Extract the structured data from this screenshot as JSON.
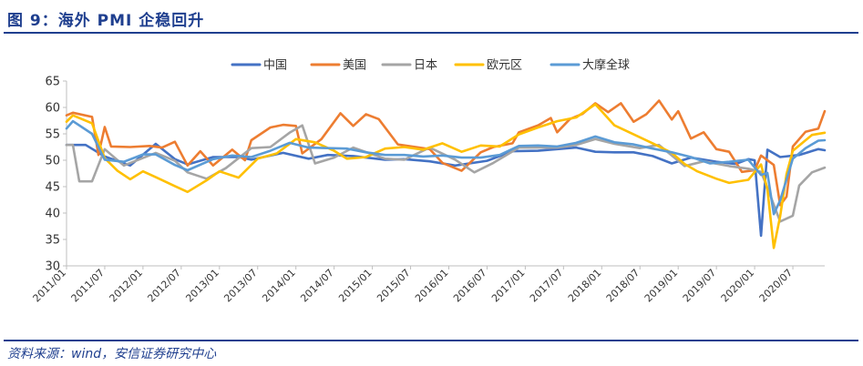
{
  "figure": {
    "title": "图 9：海外 PMI 企稳回升",
    "source": "资料来源：wind，安信证券研究中心"
  },
  "chart_data": {
    "type": "line",
    "title": "",
    "xlabel": "",
    "ylabel": "",
    "ylim": [
      30,
      65
    ],
    "yticks": [
      30,
      35,
      40,
      45,
      50,
      55,
      60,
      65
    ],
    "xticks": [
      "2011/01",
      "2011/07",
      "2012/01",
      "2012/07",
      "2013/01",
      "2013/07",
      "2014/01",
      "2014/07",
      "2015/01",
      "2015/07",
      "2016/01",
      "2016/07",
      "2017/01",
      "2017/07",
      "2018/01",
      "2018/07",
      "2019/01",
      "2019/07",
      "2020/01",
      "2020/07"
    ],
    "legend_position": "top-center",
    "grid": false,
    "x_start": "2011/01",
    "x_end": "2020/12",
    "series": [
      {
        "name": "中国",
        "color": "#4472c4",
        "points": [
          [
            "2011/01",
            52.9
          ],
          [
            "2011/04",
            52.9
          ],
          [
            "2011/07",
            50.7
          ],
          [
            "2011/11",
            49.0
          ],
          [
            "2012/03",
            53.1
          ],
          [
            "2012/06",
            50.2
          ],
          [
            "2012/08",
            49.2
          ],
          [
            "2012/12",
            50.6
          ],
          [
            "2013/04",
            50.6
          ],
          [
            "2013/06",
            50.1
          ],
          [
            "2013/11",
            51.4
          ],
          [
            "2014/03",
            50.3
          ],
          [
            "2014/06",
            51.0
          ],
          [
            "2014/10",
            50.8
          ],
          [
            "2015/03",
            50.1
          ],
          [
            "2015/06",
            50.2
          ],
          [
            "2015/10",
            49.8
          ],
          [
            "2016/02",
            49.0
          ],
          [
            "2016/07",
            49.9
          ],
          [
            "2016/11",
            51.7
          ],
          [
            "2017/03",
            51.8
          ],
          [
            "2017/09",
            52.4
          ],
          [
            "2017/12",
            51.6
          ],
          [
            "2018/03",
            51.5
          ],
          [
            "2018/06",
            51.5
          ],
          [
            "2018/09",
            50.8
          ],
          [
            "2018/12",
            49.4
          ],
          [
            "2019/03",
            50.5
          ],
          [
            "2019/07",
            49.7
          ],
          [
            "2019/10",
            49.3
          ],
          [
            "2019/12",
            50.2
          ],
          [
            "2020/01",
            50.0
          ],
          [
            "2020/02",
            35.7
          ],
          [
            "2020/03",
            52.0
          ],
          [
            "2020/05",
            50.6
          ],
          [
            "2020/08",
            51.0
          ],
          [
            "2020/11",
            52.1
          ],
          [
            "2020/12",
            51.9
          ]
        ]
      },
      {
        "name": "美国",
        "color": "#ed7d31",
        "points": [
          [
            "2011/01",
            58.5
          ],
          [
            "2011/02",
            59.0
          ],
          [
            "2011/05",
            58.2
          ],
          [
            "2011/06",
            51.0
          ],
          [
            "2011/07",
            56.3
          ],
          [
            "2011/08",
            52.6
          ],
          [
            "2011/11",
            52.5
          ],
          [
            "2012/02",
            52.7
          ],
          [
            "2012/04",
            52.4
          ],
          [
            "2012/06",
            53.5
          ],
          [
            "2012/08",
            49.0
          ],
          [
            "2012/10",
            51.7
          ],
          [
            "2012/12",
            49.0
          ],
          [
            "2013/03",
            52.0
          ],
          [
            "2013/05",
            50.0
          ],
          [
            "2013/06",
            53.8
          ],
          [
            "2013/09",
            56.2
          ],
          [
            "2013/11",
            56.7
          ],
          [
            "2014/01",
            56.5
          ],
          [
            "2014/02",
            51.3
          ],
          [
            "2014/05",
            54.0
          ],
          [
            "2014/08",
            58.9
          ],
          [
            "2014/10",
            56.5
          ],
          [
            "2014/12",
            58.7
          ],
          [
            "2015/02",
            57.8
          ],
          [
            "2015/05",
            53.0
          ],
          [
            "2015/10",
            52.1
          ],
          [
            "2015/12",
            49.5
          ],
          [
            "2016/03",
            48.0
          ],
          [
            "2016/06",
            51.5
          ],
          [
            "2016/08",
            52.5
          ],
          [
            "2016/11",
            53.2
          ],
          [
            "2016/12",
            55.3
          ],
          [
            "2017/03",
            56.6
          ],
          [
            "2017/05",
            58.0
          ],
          [
            "2017/06",
            55.3
          ],
          [
            "2017/08",
            57.8
          ],
          [
            "2017/10",
            58.8
          ],
          [
            "2017/12",
            60.8
          ],
          [
            "2018/02",
            59.1
          ],
          [
            "2018/04",
            60.8
          ],
          [
            "2018/06",
            57.3
          ],
          [
            "2018/08",
            58.7
          ],
          [
            "2018/10",
            61.3
          ],
          [
            "2018/12",
            57.7
          ],
          [
            "2019/01",
            59.3
          ],
          [
            "2019/03",
            54.1
          ],
          [
            "2019/05",
            55.3
          ],
          [
            "2019/07",
            52.1
          ],
          [
            "2019/09",
            51.6
          ],
          [
            "2019/11",
            47.8
          ],
          [
            "2020/01",
            48.1
          ],
          [
            "2020/02",
            50.9
          ],
          [
            "2020/04",
            49.1
          ],
          [
            "2020/05",
            41.5
          ],
          [
            "2020/06",
            43.1
          ],
          [
            "2020/07",
            52.6
          ],
          [
            "2020/09",
            55.4
          ],
          [
            "2020/11",
            56.0
          ],
          [
            "2020/12",
            59.3
          ]
        ]
      },
      {
        "name": "日本",
        "color": "#a5a5a5",
        "points": [
          [
            "2011/01",
            52.9
          ],
          [
            "2011/02",
            52.9
          ],
          [
            "2011/03",
            46.0
          ],
          [
            "2011/05",
            46.0
          ],
          [
            "2011/07",
            52.1
          ],
          [
            "2011/10",
            49.0
          ],
          [
            "2012/03",
            51.4
          ],
          [
            "2012/06",
            49.9
          ],
          [
            "2012/08",
            47.7
          ],
          [
            "2012/11",
            46.5
          ],
          [
            "2013/02",
            48.5
          ],
          [
            "2013/06",
            52.3
          ],
          [
            "2013/09",
            52.5
          ],
          [
            "2013/12",
            55.2
          ],
          [
            "2014/02",
            56.6
          ],
          [
            "2014/04",
            49.4
          ],
          [
            "2014/07",
            50.5
          ],
          [
            "2014/10",
            52.4
          ],
          [
            "2015/03",
            50.3
          ],
          [
            "2015/06",
            50.1
          ],
          [
            "2015/10",
            52.4
          ],
          [
            "2016/02",
            50.1
          ],
          [
            "2016/05",
            47.7
          ],
          [
            "2016/08",
            49.5
          ],
          [
            "2016/12",
            52.4
          ],
          [
            "2017/03",
            52.4
          ],
          [
            "2017/06",
            52.4
          ],
          [
            "2017/09",
            52.9
          ],
          [
            "2017/12",
            54.0
          ],
          [
            "2018/03",
            53.1
          ],
          [
            "2018/07",
            52.3
          ],
          [
            "2018/10",
            52.9
          ],
          [
            "2019/02",
            48.9
          ],
          [
            "2019/05",
            49.8
          ],
          [
            "2019/09",
            48.9
          ],
          [
            "2019/12",
            48.4
          ],
          [
            "2020/02",
            47.8
          ],
          [
            "2020/03",
            44.8
          ],
          [
            "2020/05",
            38.4
          ],
          [
            "2020/07",
            39.5
          ],
          [
            "2020/08",
            45.2
          ],
          [
            "2020/10",
            47.7
          ],
          [
            "2020/12",
            48.6
          ]
        ]
      },
      {
        "name": "欧元区",
        "color": "#ffc000",
        "points": [
          [
            "2011/01",
            57.3
          ],
          [
            "2011/02",
            58.5
          ],
          [
            "2011/05",
            57.0
          ],
          [
            "2011/07",
            50.4
          ],
          [
            "2011/09",
            48.0
          ],
          [
            "2011/11",
            46.4
          ],
          [
            "2012/01",
            47.9
          ],
          [
            "2012/03",
            46.8
          ],
          [
            "2012/06",
            45.1
          ],
          [
            "2012/08",
            44.0
          ],
          [
            "2012/11",
            46.2
          ],
          [
            "2013/01",
            47.9
          ],
          [
            "2013/04",
            46.7
          ],
          [
            "2013/07",
            50.3
          ],
          [
            "2013/10",
            51.3
          ],
          [
            "2014/01",
            54.0
          ],
          [
            "2014/04",
            53.4
          ],
          [
            "2014/07",
            51.8
          ],
          [
            "2014/09",
            50.3
          ],
          [
            "2014/12",
            50.6
          ],
          [
            "2015/03",
            52.2
          ],
          [
            "2015/06",
            52.5
          ],
          [
            "2015/09",
            52.0
          ],
          [
            "2015/12",
            53.2
          ],
          [
            "2016/03",
            51.6
          ],
          [
            "2016/06",
            52.8
          ],
          [
            "2016/09",
            52.6
          ],
          [
            "2016/12",
            54.9
          ],
          [
            "2017/03",
            56.2
          ],
          [
            "2017/06",
            57.4
          ],
          [
            "2017/09",
            58.1
          ],
          [
            "2017/12",
            60.6
          ],
          [
            "2018/03",
            56.6
          ],
          [
            "2018/06",
            54.9
          ],
          [
            "2018/09",
            53.2
          ],
          [
            "2018/12",
            51.4
          ],
          [
            "2019/02",
            49.3
          ],
          [
            "2019/04",
            47.9
          ],
          [
            "2019/07",
            46.5
          ],
          [
            "2019/09",
            45.7
          ],
          [
            "2019/12",
            46.3
          ],
          [
            "2020/02",
            49.2
          ],
          [
            "2020/03",
            44.5
          ],
          [
            "2020/04",
            33.4
          ],
          [
            "2020/05",
            39.4
          ],
          [
            "2020/06",
            47.4
          ],
          [
            "2020/07",
            51.8
          ],
          [
            "2020/10",
            54.8
          ],
          [
            "2020/12",
            55.2
          ]
        ]
      },
      {
        "name": "大摩全球",
        "color": "#5b9bd5",
        "points": [
          [
            "2011/01",
            56.0
          ],
          [
            "2011/02",
            57.4
          ],
          [
            "2011/05",
            55.0
          ],
          [
            "2011/07",
            50.1
          ],
          [
            "2011/10",
            49.7
          ],
          [
            "2012/01",
            51.1
          ],
          [
            "2012/03",
            51.1
          ],
          [
            "2012/06",
            49.1
          ],
          [
            "2012/08",
            48.1
          ],
          [
            "2012/12",
            50.2
          ],
          [
            "2013/03",
            50.9
          ],
          [
            "2013/06",
            50.6
          ],
          [
            "2013/09",
            51.8
          ],
          [
            "2013/12",
            53.3
          ],
          [
            "2014/03",
            52.4
          ],
          [
            "2014/06",
            52.3
          ],
          [
            "2014/09",
            52.2
          ],
          [
            "2014/12",
            51.5
          ],
          [
            "2015/03",
            51.0
          ],
          [
            "2015/06",
            51.0
          ],
          [
            "2015/09",
            50.7
          ],
          [
            "2015/12",
            50.9
          ],
          [
            "2016/03",
            50.5
          ],
          [
            "2016/06",
            50.5
          ],
          [
            "2016/09",
            51.0
          ],
          [
            "2016/12",
            52.7
          ],
          [
            "2017/03",
            52.8
          ],
          [
            "2017/06",
            52.6
          ],
          [
            "2017/09",
            53.3
          ],
          [
            "2017/12",
            54.5
          ],
          [
            "2018/03",
            53.4
          ],
          [
            "2018/06",
            53.0
          ],
          [
            "2018/09",
            52.2
          ],
          [
            "2018/12",
            51.5
          ],
          [
            "2019/03",
            50.6
          ],
          [
            "2019/06",
            49.4
          ],
          [
            "2019/09",
            49.7
          ],
          [
            "2019/12",
            50.1
          ],
          [
            "2020/02",
            47.2
          ],
          [
            "2020/03",
            47.6
          ],
          [
            "2020/04",
            39.8
          ],
          [
            "2020/05",
            42.4
          ],
          [
            "2020/07",
            50.3
          ],
          [
            "2020/09",
            52.3
          ],
          [
            "2020/11",
            53.7
          ],
          [
            "2020/12",
            53.8
          ]
        ]
      }
    ]
  }
}
